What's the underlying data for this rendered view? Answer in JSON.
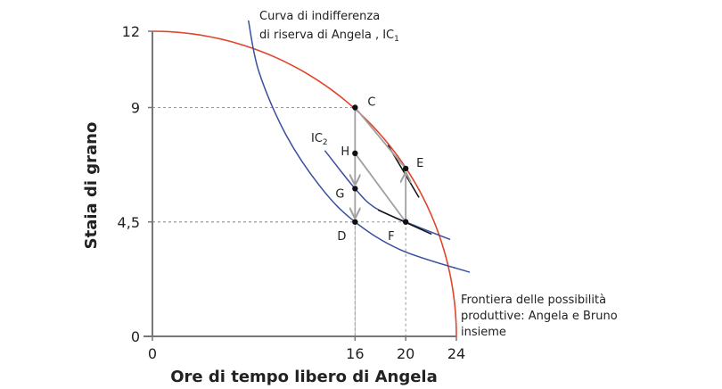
{
  "chart_data": {
    "type": "line",
    "xlabel": "Ore di tempo libero di Angela",
    "ylabel": "Staia di grano",
    "xlim": [
      0,
      24
    ],
    "ylim": [
      0,
      12
    ],
    "xticks": [
      "0",
      "16",
      "20",
      "24"
    ],
    "xtick_values": [
      0,
      16,
      20,
      24
    ],
    "yticks": [
      "0",
      "4,5",
      "9",
      "12"
    ],
    "ytick_values": [
      0,
      4.5,
      9,
      12
    ],
    "grid": false,
    "colors": {
      "frontier": "#e0452b",
      "indifference": "#3a4f9e",
      "arrows": "#a0a0a0",
      "tangent": "#111111",
      "guides": "#999999"
    },
    "frontier": {
      "label": "Frontiera delle possibilità produttive: Angela e Bruno insieme",
      "label_lines": [
        "Frontiera delle possibilità",
        "produttive: Angela e Bruno",
        "insieme"
      ],
      "x_intercept": 24,
      "y_intercept": 12
    },
    "ic1": {
      "label_lines": [
        "Curva di indifferenza",
        "di riserva di Angela , IC"
      ],
      "label_sub": "1",
      "points": [
        [
          7.58,
          12.42
        ],
        [
          8.42,
          10.39
        ],
        [
          10.53,
          7.94
        ],
        [
          13.33,
          5.84
        ],
        [
          16,
          4.5
        ],
        [
          19.65,
          3.39
        ],
        [
          25.05,
          2.52
        ]
      ]
    },
    "ic2": {
      "label": "IC",
      "label_sub": "2",
      "points": [
        [
          13.61,
          7.31
        ],
        [
          16,
          5.81
        ],
        [
          17.54,
          5.07
        ],
        [
          20,
          4.5
        ],
        [
          23.51,
          3.81
        ]
      ]
    },
    "points": [
      {
        "name": "C",
        "x": 16,
        "y": 9
      },
      {
        "name": "H",
        "x": 16,
        "y": 7.2
      },
      {
        "name": "G",
        "x": 16,
        "y": 5.81
      },
      {
        "name": "D",
        "x": 16,
        "y": 4.5
      },
      {
        "name": "E",
        "x": 20,
        "y": 6.6
      },
      {
        "name": "F",
        "x": 20,
        "y": 4.5
      }
    ],
    "tangents": [
      [
        [
          18.6,
          7.52
        ],
        [
          21.05,
          5.46
        ]
      ],
      [
        [
          17.82,
          4.97
        ],
        [
          22.04,
          4.02
        ]
      ]
    ],
    "arrows": [
      [
        "C",
        "G"
      ],
      [
        "G",
        "D"
      ],
      [
        "F",
        "E"
      ]
    ],
    "lines": [
      [
        "C",
        "E"
      ],
      [
        "H",
        "F"
      ]
    ]
  }
}
